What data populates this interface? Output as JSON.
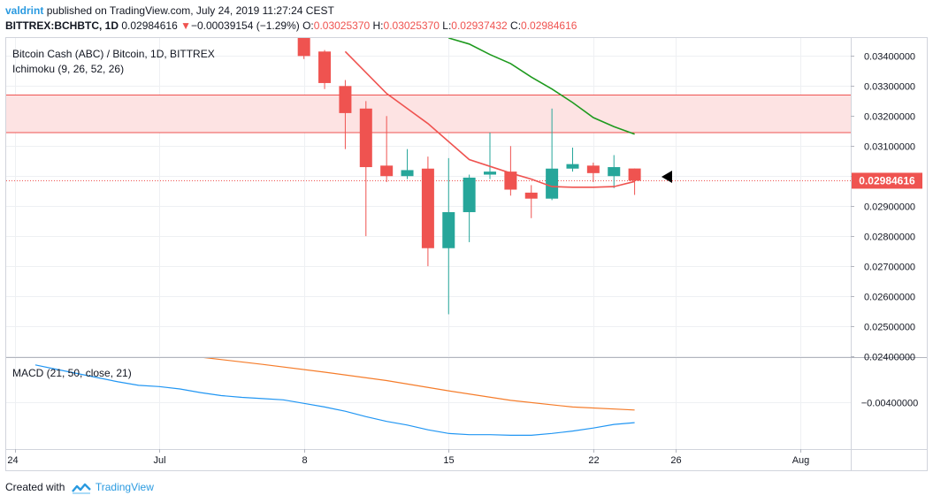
{
  "header": {
    "user": "valdrint",
    "published": "published on TradingView.com, July 24, 2019 11:27:24 CEST",
    "symbol": "BITTREX:BCHBTC, 1D",
    "last": "0.02984616",
    "change_arrow": "▼",
    "change": "−0.00039154 (−1.29%)",
    "o_label": "O:",
    "o": "0.03025370",
    "h_label": "H:",
    "h": "0.03025370",
    "l_label": "L:",
    "l": "0.02937432",
    "c_label": "C:",
    "c": "0.02984616"
  },
  "legend": {
    "main": "Bitcoin Cash (ABC) / Bitcoin, 1D, BITTREX",
    "ichimoku": "Ichimoku (9, 26, 52, 26)",
    "macd": "MACD (21, 50, close, 21)"
  },
  "price_tag": "0.02984616",
  "footer": {
    "created_with": "Created with",
    "brand": "TradingView"
  },
  "colors": {
    "up": "#26a69a",
    "down": "#ef5350",
    "tenkan": "#ef5350",
    "kijun": "#1e9a1e",
    "macd": "#2196f3",
    "signal": "#f57c2a",
    "zone_fill": "#fde3e3",
    "zone_line": "#ef5350"
  },
  "chart_data": [
    {
      "type": "candlestick",
      "ylim": [
        0.024,
        0.0346
      ],
      "x_axis_ticks": [
        "24",
        "Jul",
        "8",
        "15",
        "22",
        "26",
        "Aug"
      ],
      "y_axis_ticks": [
        "0.02400000",
        "0.02500000",
        "0.02600000",
        "0.02700000",
        "0.02800000",
        "0.02900000",
        "0.03000000",
        "0.03100000",
        "0.03200000",
        "0.03300000",
        "0.03400000"
      ],
      "last_price": 0.02984616,
      "resistance_zone": [
        0.03145,
        0.0327
      ],
      "candles": [
        {
          "date": "Jul 8",
          "open": 0.0346,
          "high": 0.0347,
          "low": 0.0339,
          "close": 0.034
        },
        {
          "date": "Jul 9",
          "open": 0.03415,
          "high": 0.0342,
          "low": 0.0329,
          "close": 0.0331
        },
        {
          "date": "Jul 10",
          "open": 0.033,
          "high": 0.0332,
          "low": 0.0309,
          "close": 0.0321
        },
        {
          "date": "Jul 11",
          "open": 0.03225,
          "high": 0.0325,
          "low": 0.028,
          "close": 0.0303
        },
        {
          "date": "Jul 12",
          "open": 0.03035,
          "high": 0.032,
          "low": 0.0298,
          "close": 0.03
        },
        {
          "date": "Jul 13",
          "open": 0.03,
          "high": 0.0309,
          "low": 0.0299,
          "close": 0.0302
        },
        {
          "date": "Jul 14",
          "open": 0.03025,
          "high": 0.03065,
          "low": 0.027,
          "close": 0.0276
        },
        {
          "date": "Jul 15",
          "open": 0.0276,
          "high": 0.0306,
          "low": 0.0254,
          "close": 0.0288
        },
        {
          "date": "Jul 16",
          "open": 0.0288,
          "high": 0.03005,
          "low": 0.0278,
          "close": 0.02995
        },
        {
          "date": "Jul 17",
          "open": 0.03005,
          "high": 0.03145,
          "low": 0.0299,
          "close": 0.03015
        },
        {
          "date": "Jul 18",
          "open": 0.03015,
          "high": 0.031,
          "low": 0.02935,
          "close": 0.02955
        },
        {
          "date": "Jul 19",
          "open": 0.02945,
          "high": 0.0297,
          "low": 0.0286,
          "close": 0.02925
        },
        {
          "date": "Jul 20",
          "open": 0.02925,
          "high": 0.03225,
          "low": 0.0292,
          "close": 0.03025
        },
        {
          "date": "Jul 21",
          "open": 0.03025,
          "high": 0.03095,
          "low": 0.03015,
          "close": 0.0304
        },
        {
          "date": "Jul 22",
          "open": 0.03035,
          "high": 0.03045,
          "low": 0.0298,
          "close": 0.0301
        },
        {
          "date": "Jul 23",
          "open": 0.03,
          "high": 0.0307,
          "low": 0.0296,
          "close": 0.0303
        },
        {
          "date": "Jul 24",
          "open": 0.0302537,
          "high": 0.0302537,
          "low": 0.02937432,
          "close": 0.02984616
        }
      ],
      "tenkan_sen": [
        {
          "date": "Jul 10",
          "value": 0.03415
        },
        {
          "date": "Jul 12",
          "value": 0.03275
        },
        {
          "date": "Jul 14",
          "value": 0.03175
        },
        {
          "date": "Jul 16",
          "value": 0.03055
        },
        {
          "date": "Jul 18",
          "value": 0.0301
        },
        {
          "date": "Jul 19",
          "value": 0.0299
        },
        {
          "date": "Jul 20",
          "value": 0.02965
        },
        {
          "date": "Jul 21",
          "value": 0.02963
        },
        {
          "date": "Jul 22",
          "value": 0.02963
        },
        {
          "date": "Jul 23",
          "value": 0.02965
        },
        {
          "date": "Jul 24",
          "value": 0.02982
        }
      ],
      "kijun_sen": [
        {
          "date": "Jul 15",
          "value": 0.0346
        },
        {
          "date": "Jul 16",
          "value": 0.0344
        },
        {
          "date": "Jul 17",
          "value": 0.03405
        },
        {
          "date": "Jul 18",
          "value": 0.03375
        },
        {
          "date": "Jul 19",
          "value": 0.0333
        },
        {
          "date": "Jul 20",
          "value": 0.0329
        },
        {
          "date": "Jul 21",
          "value": 0.03245
        },
        {
          "date": "Jul 22",
          "value": 0.03195
        },
        {
          "date": "Jul 23",
          "value": 0.03165
        },
        {
          "date": "Jul 24",
          "value": 0.0314
        }
      ]
    },
    {
      "type": "line",
      "ylim": [
        -0.00478,
        -0.00325
      ],
      "y_axis_ticks": [
        "−0.00400000"
      ],
      "series": [
        {
          "name": "MACD",
          "points": [
            {
              "date": "Jun 25",
              "value": -0.00338
            },
            {
              "date": "Jun 26",
              "value": -0.00345
            },
            {
              "date": "Jun 27",
              "value": -0.00352
            },
            {
              "date": "Jun 28",
              "value": -0.00359
            },
            {
              "date": "Jun 29",
              "value": -0.00366
            },
            {
              "date": "Jun 30",
              "value": -0.00372
            },
            {
              "date": "Jul 1",
              "value": -0.00374
            },
            {
              "date": "Jul 2",
              "value": -0.00378
            },
            {
              "date": "Jul 3",
              "value": -0.00384
            },
            {
              "date": "Jul 4",
              "value": -0.00389
            },
            {
              "date": "Jul 5",
              "value": -0.00392
            },
            {
              "date": "Jul 6",
              "value": -0.00394
            },
            {
              "date": "Jul 7",
              "value": -0.00396
            },
            {
              "date": "Jul 8",
              "value": -0.00402
            },
            {
              "date": "Jul 9",
              "value": -0.00408
            },
            {
              "date": "Jul 10",
              "value": -0.00415
            },
            {
              "date": "Jul 11",
              "value": -0.00424
            },
            {
              "date": "Jul 12",
              "value": -0.00432
            },
            {
              "date": "Jul 13",
              "value": -0.00438
            },
            {
              "date": "Jul 14",
              "value": -0.00446
            },
            {
              "date": "Jul 15",
              "value": -0.00452
            },
            {
              "date": "Jul 16",
              "value": -0.00454
            },
            {
              "date": "Jul 17",
              "value": -0.00454
            },
            {
              "date": "Jul 18",
              "value": -0.00455
            },
            {
              "date": "Jul 19",
              "value": -0.00455
            },
            {
              "date": "Jul 20",
              "value": -0.00452
            },
            {
              "date": "Jul 21",
              "value": -0.00448
            },
            {
              "date": "Jul 22",
              "value": -0.00443
            },
            {
              "date": "Jul 23",
              "value": -0.00437
            },
            {
              "date": "Jul 24",
              "value": -0.00434
            }
          ]
        },
        {
          "name": "Signal",
          "points": [
            {
              "date": "Jul 3",
              "value": -0.00325
            },
            {
              "date": "Jul 6",
              "value": -0.00337
            },
            {
              "date": "Jul 9",
              "value": -0.0035
            },
            {
              "date": "Jul 12",
              "value": -0.00364
            },
            {
              "date": "Jul 15",
              "value": -0.00381
            },
            {
              "date": "Jul 18",
              "value": -0.00397
            },
            {
              "date": "Jul 21",
              "value": -0.00408
            },
            {
              "date": "Jul 24",
              "value": -0.00413
            }
          ]
        }
      ]
    }
  ]
}
